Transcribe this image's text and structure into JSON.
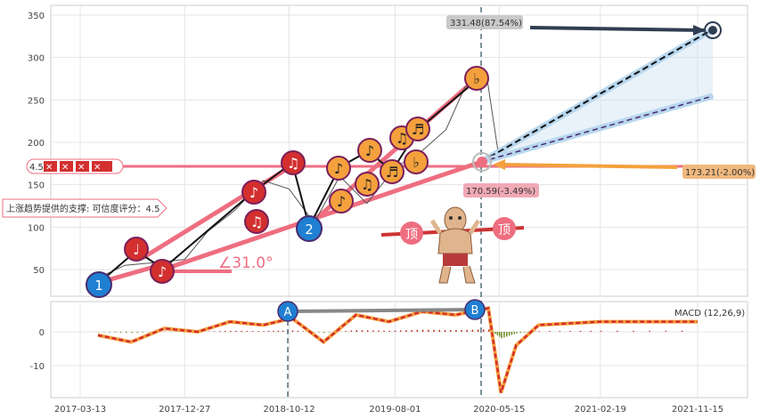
{
  "chart_data": [
    {
      "type": "line",
      "panel": "price",
      "ylim": [
        20,
        360
      ],
      "y_ticks": [
        50,
        100,
        150,
        200,
        250,
        300,
        350
      ],
      "x_tick_labels": [
        "2017-03-13",
        "2017-12-27",
        "2018-10-12",
        "2019-08-01",
        "2020-05-15",
        "2021-02-19",
        "2021-11-15"
      ],
      "grid": true,
      "price_series": {
        "x": [
          "2017-05-01",
          "2017-07-15",
          "2017-10-01",
          "2017-12-27",
          "2018-03-01",
          "2018-05-15",
          "2018-08-01",
          "2018-10-12",
          "2018-12-20",
          "2019-03-01",
          "2019-05-15",
          "2019-08-01",
          "2019-10-15",
          "2019-12-20",
          "2020-02-10",
          "2020-04-10",
          "2020-05-15"
        ],
        "y": [
          40,
          55,
          58,
          62,
          95,
          120,
          155,
          145,
          105,
          160,
          128,
          170,
          190,
          215,
          265,
          280,
          180
        ]
      },
      "support_value": 4.5,
      "support_label": "上涨趋势提供的支撑: 可信度评分：4.5",
      "angle_label": "∠31.0°",
      "current_price_label": "170.59(-3.49%)",
      "target_upper_label": "331.48(87.54%)",
      "target_lower_label": "173.21(-2.00%)",
      "wave_labels": [
        "1",
        "2"
      ],
      "top_labels": [
        "顶",
        "顶"
      ],
      "horizontal_level": 175
    },
    {
      "type": "line",
      "panel": "macd",
      "legend": "MACD (12,26,9)",
      "ylim": [
        -20,
        8
      ],
      "y_ticks": [
        0,
        -10
      ],
      "divergence_labels": [
        "A",
        "B"
      ],
      "x": [
        "2017-05-01",
        "2017-08-01",
        "2017-11-01",
        "2018-02-01",
        "2018-05-01",
        "2018-08-01",
        "2018-10-20",
        "2019-01-15",
        "2019-04-15",
        "2019-07-15",
        "2019-10-15",
        "2020-01-15",
        "2020-04-15",
        "2020-05-20",
        "2020-07-01",
        "2020-09-01",
        "2021-02-19",
        "2021-11-15"
      ],
      "y": [
        -1,
        -3,
        1,
        0,
        3,
        2,
        4,
        -3,
        5,
        3,
        6,
        5,
        7,
        -18,
        -4,
        2,
        3,
        3
      ]
    }
  ],
  "colors": {
    "line_pink": "#ee6e80",
    "arrow_navy": "#2f3e52",
    "note_red": "#d32f2f",
    "note_orange": "#f4a13d",
    "wave_blue": "#1f7fd1",
    "target_tag": "#f0b87e",
    "trend_black": "#111111"
  },
  "icons": [
    "music-note-icon",
    "strongman-icon",
    "target-circle-icon"
  ]
}
